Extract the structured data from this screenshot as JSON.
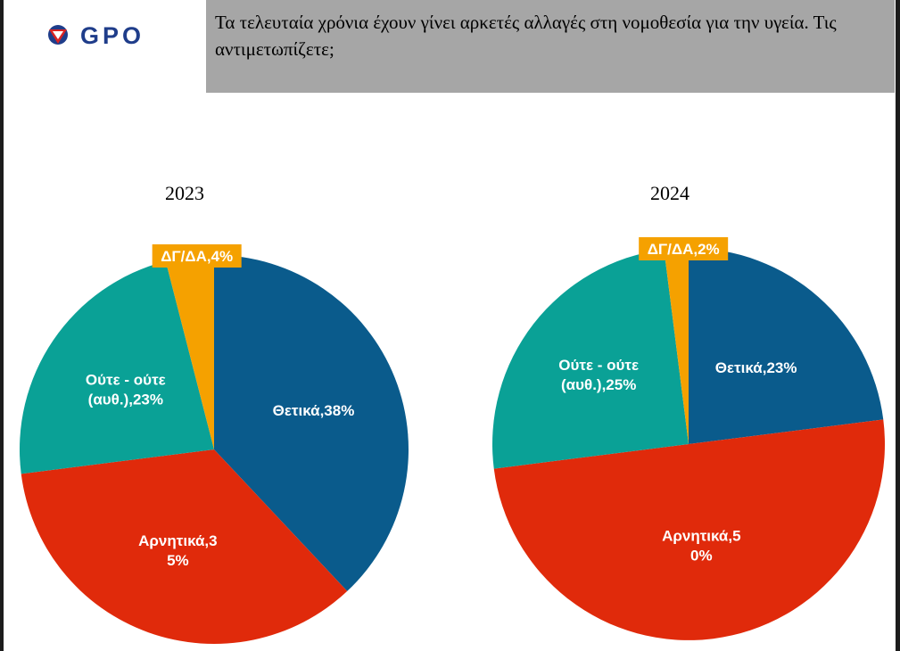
{
  "header": {
    "logo_text": "GPO",
    "question": "Τα τελευταία χρόνια έχουν γίνει αρκετές αλλαγές στη νομοθεσία για την υγεία. Τις αντιμετωπίζετε;"
  },
  "colors": {
    "positive": "#0a5b8c",
    "negative": "#e02a0b",
    "neutral": "#0aa196",
    "dkna": "#f5a100",
    "header_bg": "#a6a6a6",
    "logo_blue": "#1f3d8a",
    "logo_red": "#d92323"
  },
  "chart_data": [
    {
      "type": "pie",
      "title": "2023",
      "slices": [
        {
          "name": "Θετικά",
          "value": 38,
          "label_lines": [
            "Θετικά,38%"
          ],
          "color": "#0a5b8c"
        },
        {
          "name": "Αρνητικά",
          "value": 35,
          "label_lines": [
            "Αρνητικά,3",
            "5%"
          ],
          "color": "#e02a0b"
        },
        {
          "name": "Ούτε - ούτε (αυθ.)",
          "value": 23,
          "label_lines": [
            "Ούτε - ούτε",
            "(αυθ.),23%"
          ],
          "color": "#0aa196"
        },
        {
          "name": "ΔΓ/ΔΑ",
          "value": 4,
          "label_lines": [
            "ΔΓ/ΔΑ,4%"
          ],
          "color": "#f5a100",
          "callout": true
        }
      ]
    },
    {
      "type": "pie",
      "title": "2024",
      "slices": [
        {
          "name": "Θετικά",
          "value": 23,
          "label_lines": [
            "Θετικά,23%"
          ],
          "color": "#0a5b8c"
        },
        {
          "name": "Αρνητικά",
          "value": 50,
          "label_lines": [
            "Αρνητικά,5",
            "0%"
          ],
          "color": "#e02a0b"
        },
        {
          "name": "Ούτε - ούτε (αυθ.)",
          "value": 25,
          "label_lines": [
            "Ούτε - ούτε",
            "(αυθ.),25%"
          ],
          "color": "#0aa196"
        },
        {
          "name": "ΔΓ/ΔΑ",
          "value": 2,
          "label_lines": [
            "ΔΓ/ΔΑ,2%"
          ],
          "color": "#f5a100",
          "callout": true
        }
      ]
    }
  ]
}
